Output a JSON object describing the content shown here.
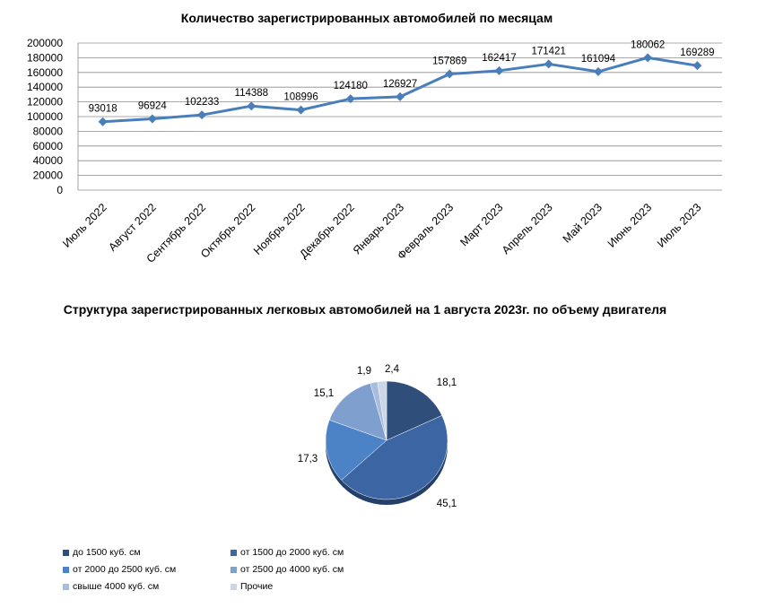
{
  "chart_data": [
    {
      "type": "line",
      "title": "Количество зарегистрированных автомобилей по месяцам",
      "categories": [
        "Июль 2022",
        "Август 2022",
        "Сентябрь 2022",
        "Октябрь 2022",
        "Ноябрь 2022",
        "Декабрь 2022",
        "Январь 2023",
        "Февраль 2023",
        "Март 2023",
        "Апрель 2023",
        "Май 2023",
        "Июнь 2023",
        "Июль 2023"
      ],
      "values": [
        93018,
        96924,
        102233,
        114388,
        108996,
        124180,
        126927,
        157869,
        162417,
        171421,
        161094,
        180062,
        169289
      ],
      "ylim": [
        0,
        200000
      ],
      "yticks": [
        "0",
        "20000",
        "40000",
        "60000",
        "80000",
        "100000",
        "120000",
        "140000",
        "160000",
        "180000",
        "200000"
      ],
      "grid": true,
      "color": "#4A7EBB"
    },
    {
      "type": "pie",
      "title": "Структура зарегистрированных легковых автомобилей на 1 августа 2023г. по объему двигателя",
      "slices": [
        {
          "label": "до 1500 куб. см",
          "value": 18.1,
          "text": "18,1",
          "color": "#2F4F7A"
        },
        {
          "label": "от 1500 до 2000 куб. см",
          "value": 45.1,
          "text": "45,1",
          "color": "#3B66A3"
        },
        {
          "label": "от 2000 до 2500 куб. см",
          "value": 17.3,
          "text": "17,3",
          "color": "#4C82C6"
        },
        {
          "label": "от 2500 до 4000 куб. см",
          "value": 15.1,
          "text": "15,1",
          "color": "#7F9FCF"
        },
        {
          "label": "свыше 4000 куб. см",
          "value": 1.9,
          "text": "1,9",
          "color": "#A8BCDD"
        },
        {
          "label": "Прочие",
          "value": 2.4,
          "text": "2,4",
          "color": "#CBD6E8"
        }
      ],
      "legend": "bottom"
    }
  ]
}
